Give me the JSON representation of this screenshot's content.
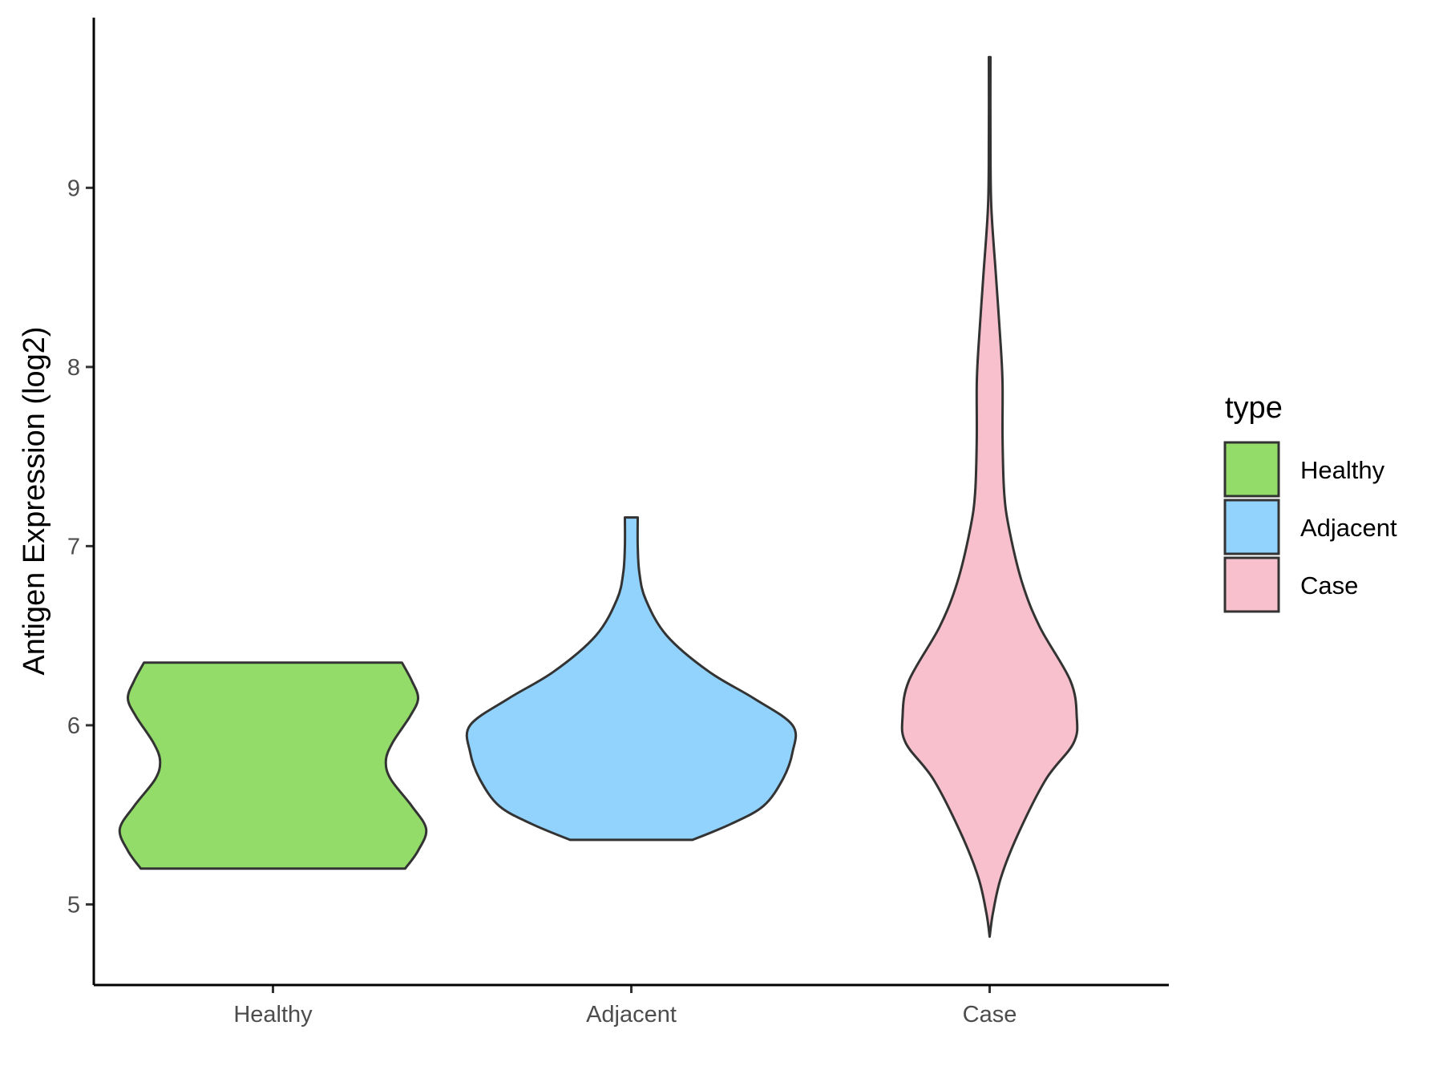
{
  "chart_data": {
    "type": "violin",
    "xlabel": "",
    "ylabel": "Antigen Expression (log2)",
    "ylim": [
      4.55,
      9.95
    ],
    "yticks": [
      "5",
      "6",
      "7",
      "8",
      "9"
    ],
    "categories": [
      "Healthy",
      "Adjacent",
      "Case"
    ],
    "grid": false,
    "legend": {
      "title": "type",
      "position": "right",
      "entries": [
        "Healthy",
        "Adjacent",
        "Case"
      ]
    },
    "series": [
      {
        "name": "Healthy",
        "color": "#93dc69",
        "min": 5.2,
        "max": 6.35,
        "density": [
          [
            5.2,
            0.82
          ],
          [
            5.3,
            0.9
          ],
          [
            5.42,
            0.95
          ],
          [
            5.55,
            0.86
          ],
          [
            5.7,
            0.73
          ],
          [
            5.8,
            0.7
          ],
          [
            5.9,
            0.74
          ],
          [
            6.05,
            0.85
          ],
          [
            6.15,
            0.9
          ],
          [
            6.25,
            0.86
          ],
          [
            6.35,
            0.8
          ]
        ]
      },
      {
        "name": "Adjacent",
        "color": "#92d3fd",
        "min": 5.36,
        "max": 7.16,
        "density": [
          [
            5.36,
            0.38
          ],
          [
            5.45,
            0.62
          ],
          [
            5.55,
            0.82
          ],
          [
            5.7,
            0.94
          ],
          [
            5.85,
            1.0
          ],
          [
            6.0,
            1.0
          ],
          [
            6.15,
            0.76
          ],
          [
            6.3,
            0.48
          ],
          [
            6.5,
            0.22
          ],
          [
            6.7,
            0.09
          ],
          [
            6.85,
            0.05
          ],
          [
            7.0,
            0.04
          ],
          [
            7.16,
            0.04
          ]
        ]
      },
      {
        "name": "Case",
        "color": "#f7c0cc",
        "min": 4.82,
        "max": 9.73,
        "density": [
          [
            4.82,
            0.0
          ],
          [
            4.95,
            0.02
          ],
          [
            5.15,
            0.07
          ],
          [
            5.4,
            0.18
          ],
          [
            5.7,
            0.35
          ],
          [
            5.9,
            0.52
          ],
          [
            6.05,
            0.54
          ],
          [
            6.25,
            0.5
          ],
          [
            6.55,
            0.31
          ],
          [
            6.8,
            0.2
          ],
          [
            7.1,
            0.12
          ],
          [
            7.3,
            0.09
          ],
          [
            7.6,
            0.08
          ],
          [
            7.9,
            0.08
          ],
          [
            8.1,
            0.07
          ],
          [
            8.5,
            0.04
          ],
          [
            8.9,
            0.01
          ],
          [
            9.3,
            0.005
          ],
          [
            9.73,
            0.005
          ]
        ]
      }
    ]
  }
}
